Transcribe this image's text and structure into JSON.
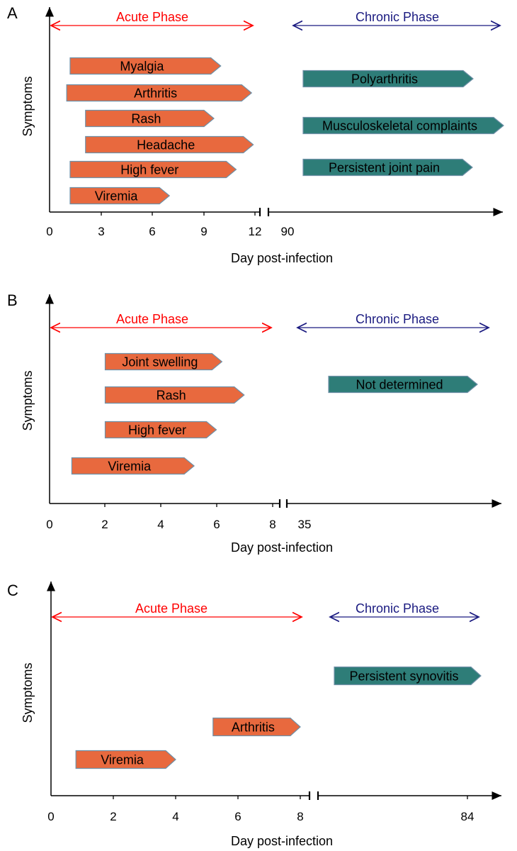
{
  "colors": {
    "acute": "#ff0000",
    "chronic": "#1a1a80",
    "acute_bar_fill": "#e8693e",
    "chronic_bar_fill": "#2e7d78",
    "bar_stroke": "#6e8fa6",
    "axis": "#000000"
  },
  "panels": [
    {
      "letter": "A",
      "ylabel": "Symptoms",
      "xlabel": "Day post-infection",
      "acute_label": "Acute Phase",
      "chronic_label": "Chronic Phase",
      "ticks": [
        "0",
        "3",
        "6",
        "9",
        "12"
      ],
      "chronic_tick": "90",
      "acute_bars": [
        {
          "label": "Myalgia",
          "start": 1.2,
          "end": 10.0
        },
        {
          "label": "Arthritis",
          "start": 1.0,
          "end": 11.8
        },
        {
          "label": "Rash",
          "start": 2.1,
          "end": 9.6
        },
        {
          "label": "Headache",
          "start": 2.1,
          "end": 11.9
        },
        {
          "label": "High fever",
          "start": 1.2,
          "end": 10.9
        },
        {
          "label": "Viremia",
          "start": 1.2,
          "end": 7.0
        }
      ],
      "chronic_bars": [
        {
          "label": "Polyarthritis"
        },
        {
          "label": "Musculoskeletal complaints"
        },
        {
          "label": "Persistent joint pain"
        }
      ]
    },
    {
      "letter": "B",
      "ylabel": "Symptoms",
      "xlabel": "Day post-infection",
      "acute_label": "Acute Phase",
      "chronic_label": "Chronic Phase",
      "ticks": [
        "0",
        "2",
        "4",
        "6",
        "8"
      ],
      "chronic_tick": "35",
      "acute_bars": [
        {
          "label": "Joint swelling",
          "start": 2.0,
          "end": 6.2
        },
        {
          "label": "Rash",
          "start": 2.0,
          "end": 7.0
        },
        {
          "label": "High fever",
          "start": 2.0,
          "end": 6.0
        },
        {
          "label": "Viremia",
          "start": 0.8,
          "end": 5.2
        }
      ],
      "chronic_bars": [
        {
          "label": "Not determined"
        }
      ]
    },
    {
      "letter": "C",
      "ylabel": "Symptoms",
      "xlabel": "Day post-infection",
      "acute_label": "Acute Phase",
      "chronic_label": "Chronic Phase",
      "ticks": [
        "0",
        "2",
        "4",
        "6",
        "8"
      ],
      "chronic_tick": "84",
      "acute_bars": [
        {
          "label": "Arthritis",
          "start": 5.2,
          "end": 8.0
        },
        {
          "label": "Viremia",
          "start": 0.8,
          "end": 4.0
        }
      ],
      "chronic_bars": [
        {
          "label": "Persistent synovitis"
        }
      ]
    }
  ]
}
